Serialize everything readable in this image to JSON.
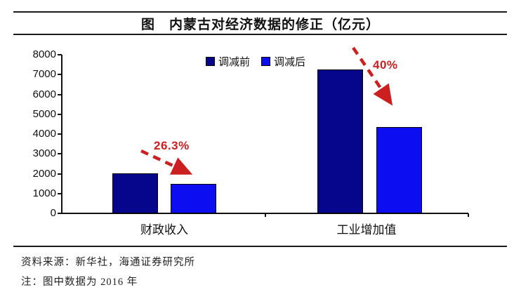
{
  "title": "图　内蒙古对经济数据的修正（亿元）",
  "chart_data": {
    "type": "bar",
    "title": "图　内蒙古对经济数据的修正（亿元）",
    "categories": [
      "财政收入",
      "工业增加值"
    ],
    "series": [
      {
        "name": "调减前",
        "values": [
          2016,
          7250
        ],
        "color": "#06068C"
      },
      {
        "name": "调减后",
        "values": [
          1486,
          4350
        ],
        "color": "#0D0DF2"
      }
    ],
    "ylabel": "",
    "xlabel": "",
    "ylim": [
      0,
      8000
    ],
    "ytick_step": 1000,
    "yticks": [
      0,
      1000,
      2000,
      3000,
      4000,
      5000,
      6000,
      7000,
      8000
    ],
    "grid": false,
    "legend_position": "top-center",
    "annotations": [
      {
        "text": "26.3%",
        "category": "财政收入",
        "meaning": "percent reduction"
      },
      {
        "text": "40%",
        "category": "工业增加值",
        "meaning": "percent reduction"
      }
    ],
    "annotation_color": "#CC1F1F"
  },
  "footer": {
    "source": "资料来源：新华社，海通证券研究所",
    "note": "注：图中数据为 2016 年"
  },
  "colors": {
    "bar_before": "#06068C",
    "bar_after": "#0D0DF2",
    "axis": "#111111",
    "annotation_red": "#CC1F1F",
    "rule": "#1a1a1a"
  }
}
